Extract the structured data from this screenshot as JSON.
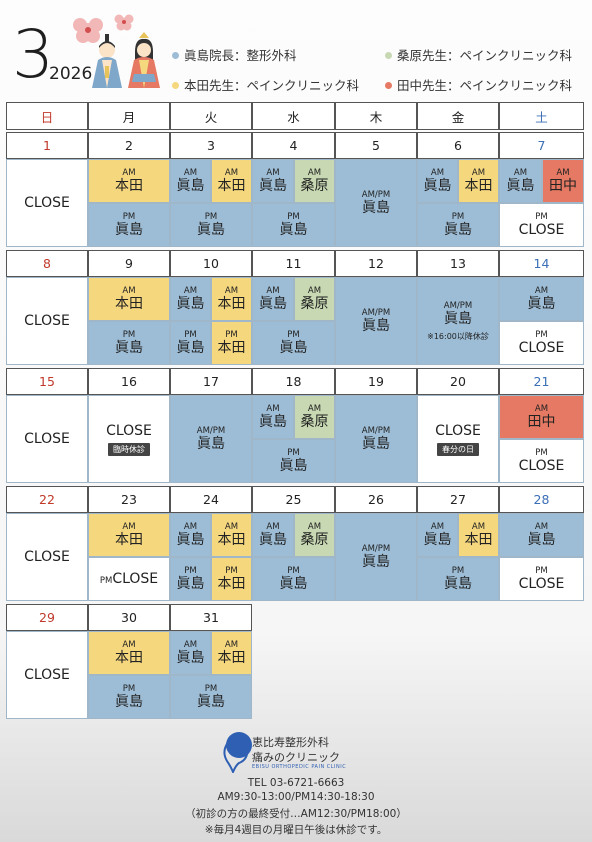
{
  "header": {
    "month": "3",
    "year": "2026"
  },
  "legend": [
    {
      "text": "眞島院長：整形外科",
      "color": "#9dbdd6"
    },
    {
      "text": "桑原先生：ペインクリニック科",
      "color": "#c7d8b2"
    },
    {
      "text": "本田先生：ペインクリニック科",
      "color": "#f5d77e"
    },
    {
      "text": "田中先生：ペインクリニック科",
      "color": "#e57963"
    }
  ],
  "weekdays": [
    {
      "label": "日",
      "color": "#c0392b"
    },
    {
      "label": "月",
      "color": "#222"
    },
    {
      "label": "火",
      "color": "#222"
    },
    {
      "label": "水",
      "color": "#222"
    },
    {
      "label": "木",
      "color": "#222"
    },
    {
      "label": "金",
      "color": "#222"
    },
    {
      "label": "土",
      "color": "#3b6fb6"
    }
  ],
  "weeks": [
    {
      "dates": [
        "1",
        "2",
        "3",
        "4",
        "5",
        "6",
        "7"
      ]
    },
    {
      "dates": [
        "8",
        "9",
        "10",
        "11",
        "12",
        "13",
        "14"
      ]
    },
    {
      "dates": [
        "15",
        "16",
        "17",
        "18",
        "19",
        "20",
        "21"
      ]
    },
    {
      "dates": [
        "22",
        "23",
        "24",
        "25",
        "26",
        "27",
        "28"
      ]
    },
    {
      "dates": [
        "29",
        "30",
        "31",
        "",
        "",
        "",
        ""
      ]
    }
  ],
  "labels": {
    "am": "AM",
    "pm": "PM",
    "ampm": "AM/PM",
    "close": "CLOSE",
    "pmclose_pm": "PM",
    "pmclose_close": "CLOSE"
  },
  "doctors": {
    "majima": "眞島",
    "honda": "本田",
    "kuwahara": "桑原",
    "tanaka": "田中"
  },
  "notes": {
    "after16": "※16:00以降休診",
    "temp_closed": "臨時休診",
    "equinox": "春分の日"
  },
  "footer": {
    "clinic_name": "恵比寿整形外科",
    "clinic_sub": "痛みのクリニック",
    "clinic_en": "EBISU ORTHOPEDIC PAIN CLINIC",
    "tel": "TEL 03-6721-6663",
    "hours": "AM9:30-13:00/PM14:30-18:30",
    "first_visit": "（初診の方の最終受付…AM12:30/PM18:00）",
    "notice": "※毎月4週目の月曜日午後は休診です。"
  }
}
